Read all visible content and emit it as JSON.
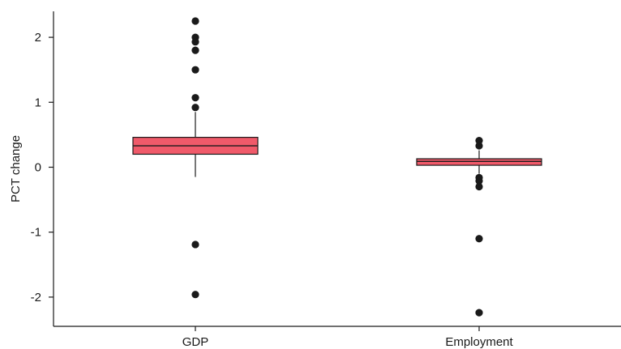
{
  "chart_data": {
    "type": "box",
    "title": "",
    "xlabel": "",
    "ylabel": "PCT change",
    "ylim": [
      -2.45,
      2.4
    ],
    "yticks": [
      2,
      1,
      0,
      -1,
      -2
    ],
    "ytick_labels": [
      "2",
      "1",
      "0",
      "-1",
      "-2"
    ],
    "grid": false,
    "legend": "none",
    "box_color": "#f05a6a",
    "outline_color": "#1a1a1a",
    "categories": [
      "GDP",
      "Employment"
    ],
    "boxes": [
      {
        "category": "GDP",
        "q1": 0.2,
        "median": 0.33,
        "q3": 0.46,
        "whisker_low": -0.15,
        "whisker_high": 0.85,
        "outliers": [
          2.25,
          2.0,
          1.93,
          1.8,
          1.5,
          1.07,
          0.92,
          -1.19,
          -1.96
        ]
      },
      {
        "category": "Employment",
        "q1": 0.03,
        "median": 0.09,
        "q3": 0.13,
        "whisker_low": -0.1,
        "whisker_high": 0.26,
        "outliers": [
          0.41,
          0.33,
          -0.16,
          -0.21,
          -0.3,
          -1.1,
          -2.24
        ]
      }
    ]
  }
}
